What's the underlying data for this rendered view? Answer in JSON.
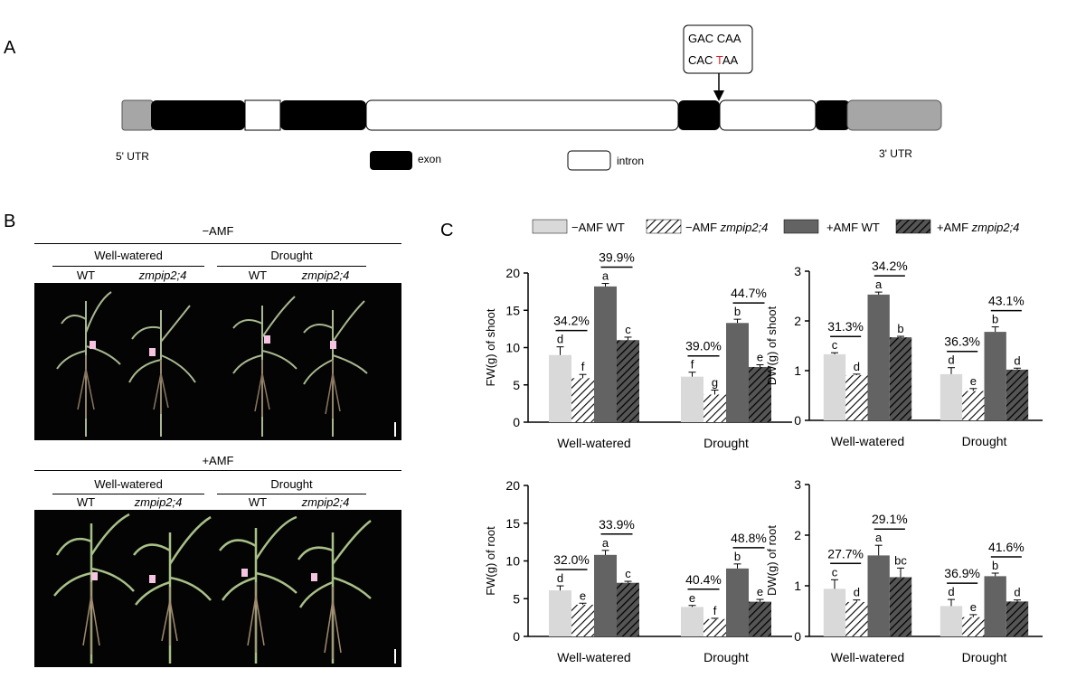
{
  "panel_labels": {
    "a": "A",
    "b": "B",
    "c": "C"
  },
  "gene": {
    "callout_line1": "GAC CAA",
    "callout_line2_prefix": "CAC ",
    "callout_line2_mut": "T",
    "callout_line2_suffix": "AA",
    "utr5": "5' UTR",
    "utr3": "3' UTR",
    "legend_exon": "exon",
    "legend_intron": "intron",
    "colors": {
      "utr": "#a6a6a6",
      "exon": "#000000",
      "intron": "#ffffff",
      "mutation": "#e02020"
    }
  },
  "photos": {
    "groups": [
      {
        "title": "−AMF",
        "well": "Well-watered",
        "drought": "Drought",
        "wt": "WT",
        "mut": "zmpip2;4"
      },
      {
        "title": "+AMF",
        "well": "Well-watered",
        "drought": "Drought",
        "wt": "WT",
        "mut": "zmpip2;4"
      }
    ]
  },
  "legend": {
    "items": [
      {
        "name": "−AMF WT",
        "prefix": "−AMF ",
        "italic": "WT",
        "is_italic": false
      },
      {
        "name": "−AMF zmpip2;4",
        "prefix": "−AMF ",
        "italic": "zmpip2;4",
        "is_italic": true
      },
      {
        "name": "+AMF WT",
        "prefix": "+AMF ",
        "italic": "WT",
        "is_italic": false
      },
      {
        "name": "+AMF zmpip2;4",
        "prefix": "+AMF ",
        "italic": "zmpip2;4",
        "is_italic": true
      }
    ],
    "colors": {
      "amf_minus": "#d9d9d9",
      "amf_plus": "#636363"
    }
  },
  "chart_data": [
    {
      "type": "bar",
      "ylabel": "FW(g) of shoot",
      "categories": [
        "Well-watered",
        "Drought"
      ],
      "ylim": [
        0,
        20
      ],
      "yticks": [
        0,
        5,
        10,
        15,
        20
      ],
      "series": [
        {
          "name": "−AMF WT",
          "values": [
            9.0,
            6.1
          ],
          "errors": [
            1.1,
            0.6
          ],
          "letters": [
            "d",
            "f"
          ]
        },
        {
          "name": "−AMF zmpip2;4",
          "values": [
            5.9,
            3.7
          ],
          "errors": [
            0.5,
            0.6
          ],
          "letters": [
            "f",
            "g"
          ]
        },
        {
          "name": "+AMF WT",
          "values": [
            18.2,
            13.3
          ],
          "errors": [
            0.4,
            0.5
          ],
          "letters": [
            "a",
            "b"
          ]
        },
        {
          "name": "+AMF zmpip2;4",
          "values": [
            11.0,
            7.4
          ],
          "errors": [
            0.4,
            0.3
          ],
          "letters": [
            "c",
            "e"
          ]
        }
      ],
      "percent_labels": [
        [
          "34.2%",
          "39.9%"
        ],
        [
          "39.0%",
          "44.7%"
        ]
      ]
    },
    {
      "type": "bar",
      "ylabel": "DW(g) of shoot",
      "categories": [
        "Well-watered",
        "Drought"
      ],
      "ylim": [
        0,
        3
      ],
      "yticks": [
        0,
        1,
        2,
        3
      ],
      "series": [
        {
          "name": "−AMF WT",
          "values": [
            1.33,
            0.93
          ],
          "errors": [
            0.03,
            0.13
          ],
          "letters": [
            "c",
            "d"
          ]
        },
        {
          "name": "−AMF zmpip2;4",
          "values": [
            0.91,
            0.59
          ],
          "errors": [
            0.02,
            0.05
          ],
          "letters": [
            "d",
            "e"
          ]
        },
        {
          "name": "+AMF WT",
          "values": [
            2.53,
            1.78
          ],
          "errors": [
            0.05,
            0.1
          ],
          "letters": [
            "a",
            "b"
          ]
        },
        {
          "name": "+AMF zmpip2;4",
          "values": [
            1.67,
            1.02
          ],
          "errors": [
            0.02,
            0.03
          ],
          "letters": [
            "b",
            "d"
          ]
        }
      ],
      "percent_labels": [
        [
          "31.3%",
          "34.2%"
        ],
        [
          "36.3%",
          "43.1%"
        ]
      ]
    },
    {
      "type": "bar",
      "ylabel": "FW(g) of root",
      "categories": [
        "Well-watered",
        "Drought"
      ],
      "ylim": [
        0,
        20
      ],
      "yticks": [
        0,
        5,
        10,
        15,
        20
      ],
      "series": [
        {
          "name": "−AMF WT",
          "values": [
            6.1,
            3.9
          ],
          "errors": [
            0.6,
            0.2
          ],
          "letters": [
            "d",
            "e"
          ]
        },
        {
          "name": "−AMF zmpip2;4",
          "values": [
            4.2,
            2.3
          ],
          "errors": [
            0.2,
            0.1
          ],
          "letters": [
            "e",
            "f"
          ]
        },
        {
          "name": "+AMF WT",
          "values": [
            10.8,
            9.0
          ],
          "errors": [
            0.6,
            0.6
          ],
          "letters": [
            "a",
            "b"
          ]
        },
        {
          "name": "+AMF zmpip2;4",
          "values": [
            7.1,
            4.6
          ],
          "errors": [
            0.2,
            0.3
          ],
          "letters": [
            "c",
            "e"
          ]
        }
      ],
      "percent_labels": [
        [
          "32.0%",
          "33.9%"
        ],
        [
          "40.4%",
          "48.8%"
        ]
      ]
    },
    {
      "type": "bar",
      "ylabel": "DW(g) of root",
      "categories": [
        "Well-watered",
        "Drought"
      ],
      "ylim": [
        0,
        3
      ],
      "yticks": [
        0,
        1,
        2,
        3
      ],
      "series": [
        {
          "name": "−AMF WT",
          "values": [
            0.94,
            0.6
          ],
          "errors": [
            0.18,
            0.13
          ],
          "letters": [
            "c",
            "d"
          ]
        },
        {
          "name": "−AMF zmpip2;4",
          "values": [
            0.68,
            0.38
          ],
          "errors": [
            0.04,
            0.05
          ],
          "letters": [
            "d",
            "e"
          ]
        },
        {
          "name": "+AMF WT",
          "values": [
            1.6,
            1.19
          ],
          "errors": [
            0.2,
            0.06
          ],
          "letters": [
            "a",
            "b"
          ]
        },
        {
          "name": "+AMF zmpip2;4",
          "values": [
            1.17,
            0.69
          ],
          "errors": [
            0.18,
            0.03
          ],
          "letters": [
            "bc",
            "d"
          ]
        }
      ],
      "percent_labels": [
        [
          "27.7%",
          "29.1%"
        ],
        [
          "36.9%",
          "41.6%"
        ]
      ]
    }
  ]
}
